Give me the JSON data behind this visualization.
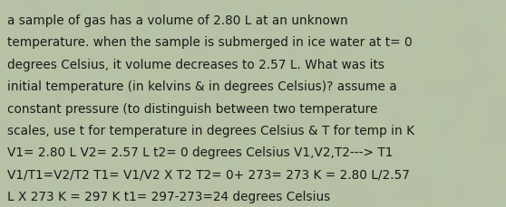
{
  "background_color": "#b0b8a0",
  "text_color": "#1a1a1a",
  "font_size": 9.8,
  "font_family": "DejaVu Sans",
  "lines": [
    "a sample of gas has a volume of 2.80 L at an unknown",
    "temperature. when the sample is submerged in ice water at t= 0",
    "degrees Celsius, it volume decreases to 2.57 L. What was its",
    "initial temperature (in kelvins & in degrees Celsius)? assume a",
    "constant pressure (to distinguish between two temperature",
    "scales, use t for temperature in degrees Celsius & T for temp in K",
    "V1= 2.80 L V2= 2.57 L t2= 0 degrees Celsius V1,V2,T2---> T1",
    "V1/T1=V2/T2 T1= V1/V2 X T2 T2= 0+ 273= 273 K = 2.80 L/2.57",
    "L X 273 K = 297 K t1= 297-273=24 degrees Celsius"
  ]
}
